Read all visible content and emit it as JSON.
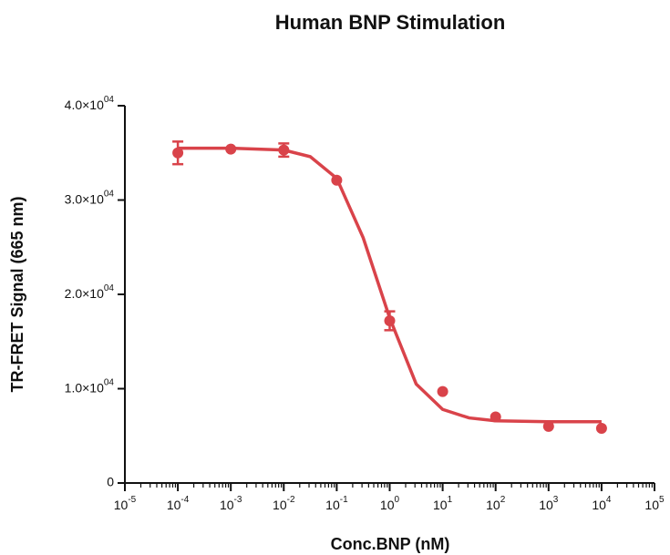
{
  "chart_data": {
    "type": "scatter",
    "title": "Human BNP Stimulation",
    "x_label": "Conc.BNP (nM)",
    "y_label": "TR-FRET Signal (665 nm)",
    "x_scale": "log",
    "color": "#d9434a",
    "x": [
      0.0001,
      0.001,
      0.01,
      0.1,
      1,
      10,
      100,
      1000,
      10000
    ],
    "values": [
      35000,
      35400,
      35300,
      32100,
      17200,
      9700,
      7000,
      6000,
      5800
    ],
    "errors": [
      1200,
      null,
      700,
      null,
      1000,
      null,
      null,
      null,
      null
    ],
    "fit": {
      "x": [
        0.0001,
        0.001,
        0.01,
        0.0316,
        0.1,
        0.316,
        1,
        3.16,
        10,
        31.6,
        100,
        1000,
        10000
      ],
      "values": [
        35500,
        35500,
        35300,
        34600,
        32300,
        26000,
        17500,
        10500,
        7800,
        6900,
        6600,
        6500,
        6500
      ]
    },
    "xlim": [
      1e-05,
      100000
    ],
    "ylim": [
      0,
      40000
    ],
    "xticks": [
      {
        "value": 1e-05,
        "label": "10",
        "sup": "-5"
      },
      {
        "value": 0.0001,
        "label": "10",
        "sup": "-4"
      },
      {
        "value": 0.001,
        "label": "10",
        "sup": "-3"
      },
      {
        "value": 0.01,
        "label": "10",
        "sup": "-2"
      },
      {
        "value": 0.1,
        "label": "10",
        "sup": "-1"
      },
      {
        "value": 1,
        "label": "10",
        "sup": "0"
      },
      {
        "value": 10,
        "label": "10",
        "sup": "1"
      },
      {
        "value": 100,
        "label": "10",
        "sup": "2"
      },
      {
        "value": 1000,
        "label": "10",
        "sup": "3"
      },
      {
        "value": 10000,
        "label": "10",
        "sup": "4"
      },
      {
        "value": 100000,
        "label": "10",
        "sup": "5"
      }
    ],
    "yticks": [
      0,
      {
        "value": 10000,
        "label": "1.0×10",
        "sup": "04"
      },
      {
        "value": 20000,
        "label": "2.0×10",
        "sup": "04"
      },
      {
        "value": 30000,
        "label": "3.0×10",
        "sup": "04"
      },
      {
        "value": 40000,
        "label": "4.0×10",
        "sup": "04"
      }
    ]
  }
}
